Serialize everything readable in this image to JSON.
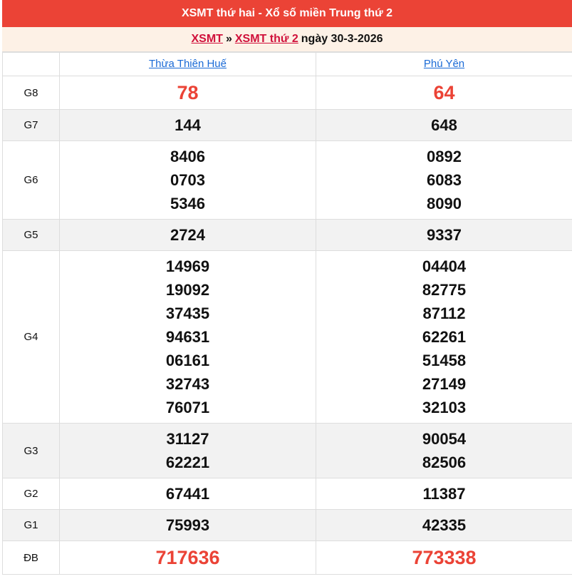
{
  "header": {
    "title": "XSMT thứ hai - Xổ số miền Trung thứ 2"
  },
  "breadcrumb": {
    "link1": "XSMT",
    "separator": "»",
    "link2": "XSMT thứ 2",
    "date_text": "ngày 30-3-2026"
  },
  "provinces": [
    "Thừa Thiên Huế",
    "Phú Yên"
  ],
  "colors": {
    "header_bg": "#eb4336",
    "highlight": "#eb4336",
    "link": "#1a6ad6",
    "breadcrumb_link": "#d0103a"
  },
  "prizes": [
    {
      "label": "G8",
      "highlight": true,
      "values": [
        [
          "78"
        ],
        [
          "64"
        ]
      ]
    },
    {
      "label": "G7",
      "values": [
        [
          "144"
        ],
        [
          "648"
        ]
      ]
    },
    {
      "label": "G6",
      "values": [
        [
          "8406",
          "0703",
          "5346"
        ],
        [
          "0892",
          "6083",
          "8090"
        ]
      ]
    },
    {
      "label": "G5",
      "values": [
        [
          "2724"
        ],
        [
          "9337"
        ]
      ]
    },
    {
      "label": "G4",
      "values": [
        [
          "14969",
          "19092",
          "37435",
          "94631",
          "06161",
          "32743",
          "76071"
        ],
        [
          "04404",
          "82775",
          "87112",
          "62261",
          "51458",
          "27149",
          "32103"
        ]
      ]
    },
    {
      "label": "G3",
      "values": [
        [
          "31127",
          "62221"
        ],
        [
          "90054",
          "82506"
        ]
      ]
    },
    {
      "label": "G2",
      "values": [
        [
          "67441"
        ],
        [
          "11387"
        ]
      ]
    },
    {
      "label": "G1",
      "values": [
        [
          "75993"
        ],
        [
          "42335"
        ]
      ]
    },
    {
      "label": "ĐB",
      "highlight": true,
      "values": [
        [
          "717636"
        ],
        [
          "773338"
        ]
      ]
    }
  ]
}
